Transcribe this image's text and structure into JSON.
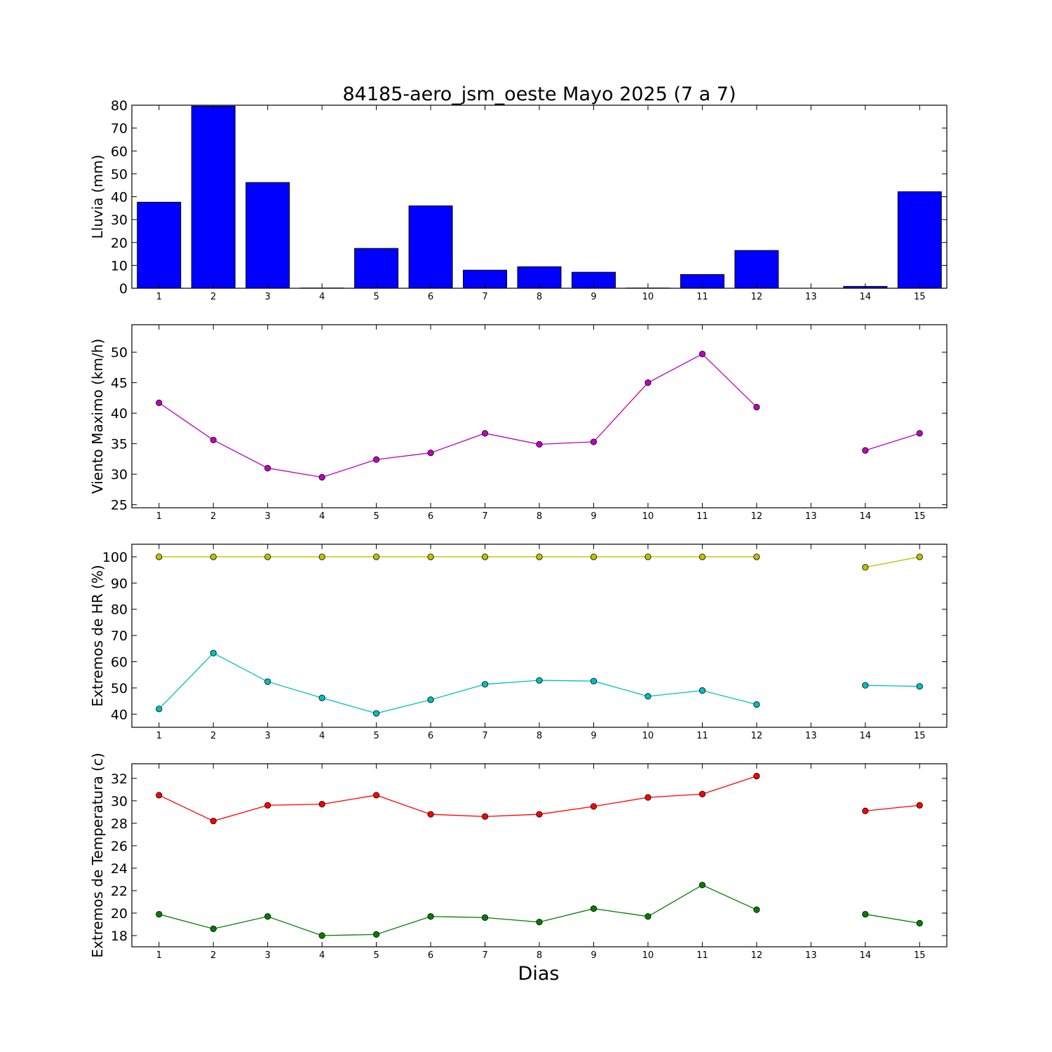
{
  "figure": {
    "title": "84185-aero_jsm_oeste Mayo 2025  (7 a 7)",
    "xlabel": "Dias"
  },
  "chart_data": [
    {
      "type": "bar",
      "ylabel": "Lluvia (mm)",
      "categories": [
        1,
        2,
        3,
        4,
        5,
        6,
        7,
        8,
        9,
        10,
        11,
        12,
        13,
        14,
        15
      ],
      "values": [
        37.6,
        79.6,
        46.2,
        0.1,
        17.4,
        36.0,
        7.9,
        9.4,
        7.0,
        0.1,
        6.0,
        16.5,
        0,
        0.8,
        42.2
      ],
      "ylim": [
        0,
        80
      ],
      "yticks": [
        0,
        10,
        20,
        30,
        40,
        50,
        60,
        70,
        80
      ],
      "xticks": [
        1,
        2,
        3,
        4,
        5,
        6,
        7,
        8,
        9,
        10,
        11,
        12,
        13,
        14,
        15
      ],
      "xlim": [
        0.5,
        15.5
      ],
      "color": "#0000ff"
    },
    {
      "type": "line",
      "ylabel": "Viento Maximo (km/h)",
      "series": [
        {
          "color": "#bf00bf",
          "x": [
            1,
            2,
            3,
            4,
            5,
            6,
            7,
            8,
            9,
            10,
            11,
            12,
            13,
            14,
            15
          ],
          "values": [
            41.7,
            35.6,
            31.0,
            29.5,
            32.4,
            33.5,
            36.7,
            34.9,
            35.3,
            45.0,
            49.7,
            41.0,
            null,
            33.9,
            36.7
          ]
        }
      ],
      "ylim": [
        24.5,
        54.5
      ],
      "yticks": [
        25,
        30,
        35,
        40,
        45,
        50
      ],
      "xticks": [
        1,
        2,
        3,
        4,
        5,
        6,
        7,
        8,
        9,
        10,
        11,
        12,
        13,
        14,
        15
      ],
      "xlim": [
        0.5,
        15.5
      ]
    },
    {
      "type": "line",
      "ylabel": "Extremos de HR (%)",
      "series": [
        {
          "color": "#bfbf00",
          "x": [
            1,
            2,
            3,
            4,
            5,
            6,
            7,
            8,
            9,
            10,
            11,
            12,
            13,
            14,
            15
          ],
          "values": [
            100,
            100,
            100,
            100,
            100,
            100,
            100,
            100,
            100,
            100,
            100,
            100,
            null,
            96,
            100
          ]
        },
        {
          "color": "#00bfbf",
          "x": [
            1,
            2,
            3,
            4,
            5,
            6,
            7,
            8,
            9,
            10,
            11,
            12,
            13,
            14,
            15
          ],
          "values": [
            42,
            63.3,
            52.4,
            46.2,
            40.3,
            45.5,
            51.4,
            52.9,
            52.6,
            46.8,
            49.0,
            43.7,
            null,
            51.0,
            50.6
          ]
        }
      ],
      "ylim": [
        35,
        104.8
      ],
      "yticks": [
        40,
        50,
        60,
        70,
        80,
        90,
        100
      ],
      "xticks": [
        1,
        2,
        3,
        4,
        5,
        6,
        7,
        8,
        9,
        10,
        11,
        12,
        13,
        14,
        15
      ],
      "xlim": [
        0.5,
        15.5
      ]
    },
    {
      "type": "line",
      "ylabel": "Extremos de Temperatura (c)",
      "series": [
        {
          "color": "#ff0000",
          "x": [
            1,
            2,
            3,
            4,
            5,
            6,
            7,
            8,
            9,
            10,
            11,
            12,
            13,
            14,
            15
          ],
          "values": [
            30.5,
            28.2,
            29.6,
            29.7,
            30.5,
            28.8,
            28.6,
            28.8,
            29.5,
            30.3,
            30.6,
            32.2,
            null,
            29.1,
            29.6
          ]
        },
        {
          "color": "#007f00",
          "x": [
            1,
            2,
            3,
            4,
            5,
            6,
            7,
            8,
            9,
            10,
            11,
            12,
            13,
            14,
            15
          ],
          "values": [
            19.9,
            18.6,
            19.7,
            18.0,
            18.1,
            19.7,
            19.6,
            19.2,
            20.4,
            19.7,
            22.5,
            20.3,
            null,
            19.9,
            19.1
          ]
        }
      ],
      "ylim": [
        17,
        33.3
      ],
      "yticks": [
        18,
        20,
        22,
        24,
        26,
        28,
        30,
        32
      ],
      "xticks": [
        1,
        2,
        3,
        4,
        5,
        6,
        7,
        8,
        9,
        10,
        11,
        12,
        13,
        14,
        15
      ],
      "xlim": [
        0.5,
        15.5
      ]
    }
  ]
}
